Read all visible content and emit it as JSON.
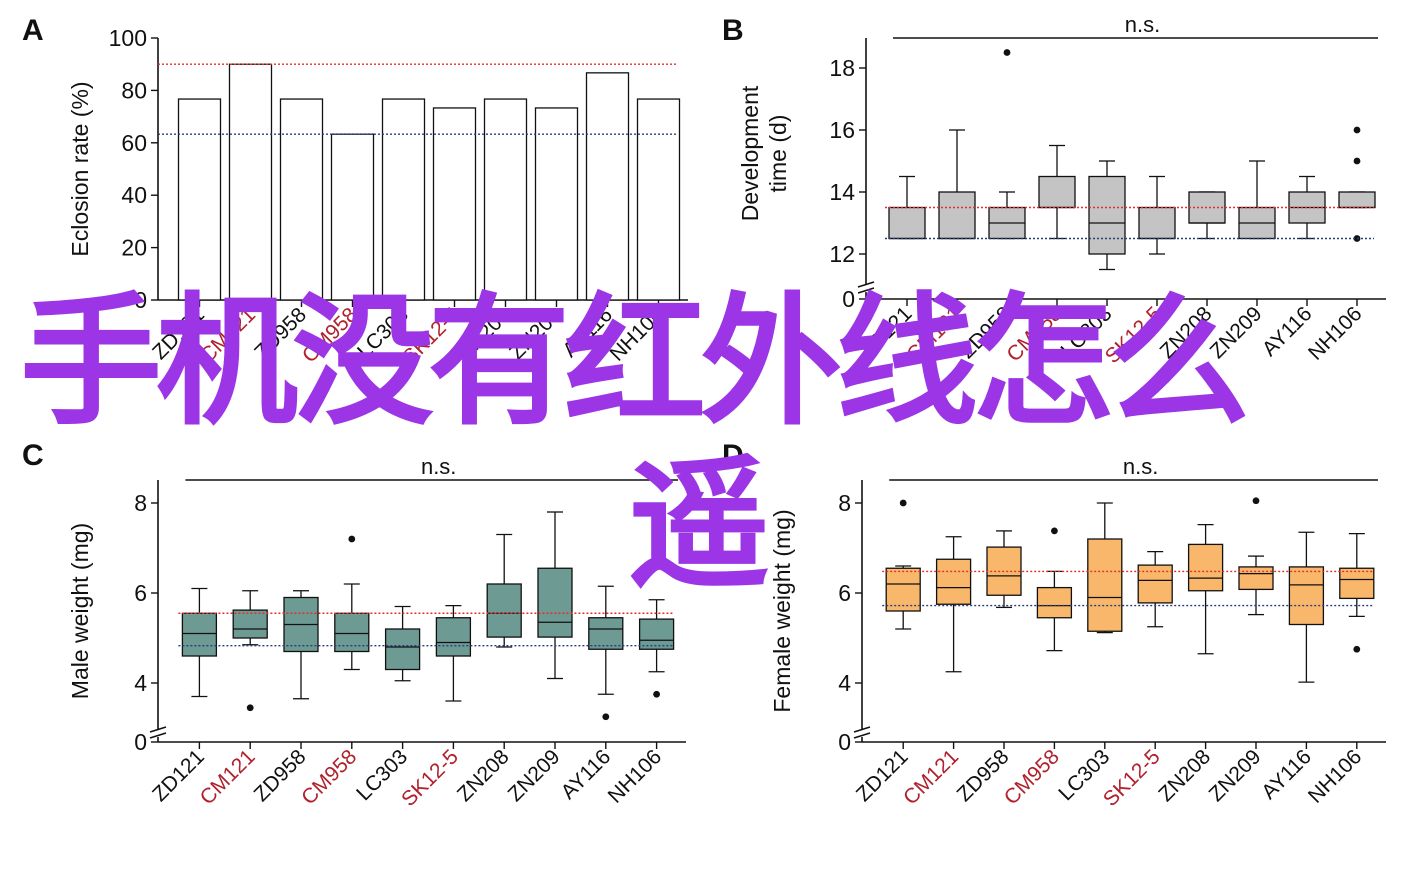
{
  "categories": [
    "ZD121",
    "CM121",
    "ZD958",
    "CM958",
    "LC303",
    "SK12-5",
    "ZN208",
    "ZN209",
    "AY116",
    "NH106"
  ],
  "category_colors": [
    "#111111",
    "#b0212c",
    "#111111",
    "#b0212c",
    "#111111",
    "#b0212c",
    "#111111",
    "#111111",
    "#111111",
    "#111111"
  ],
  "colors": {
    "ref_red": "#e0302c",
    "ref_blue": "#2a3f7a",
    "boxB": "#c4c4c4",
    "boxC": "#6e9a94",
    "boxD": "#f8b76b",
    "axis": "#111111"
  },
  "watermark": {
    "line1": "手机没有红外线怎么",
    "line2": "遥"
  },
  "chart_data": [
    {
      "panel": "A",
      "type": "bar",
      "ylabel": "Eclosion rate (%)",
      "ylim": [
        0,
        100
      ],
      "yticks": [
        0,
        20,
        40,
        60,
        80,
        100
      ],
      "values": [
        76.7,
        90,
        76.7,
        63.3,
        76.7,
        73.3,
        76.7,
        73.3,
        86.7,
        76.7
      ],
      "ref_lines": {
        "red": 90,
        "blue": 63.3
      },
      "bar_fill": "#ffffff"
    },
    {
      "panel": "B",
      "type": "box",
      "ylabel_line1": "Development",
      "ylabel_line2": "time (d)",
      "ylim": [
        11.5,
        19
      ],
      "yticks": [
        12,
        14,
        16,
        18
      ],
      "axis_break_zero": "0",
      "significance": "n.s.",
      "ref_lines": {
        "red": 13.5,
        "blue": 12.5
      },
      "boxes": [
        {
          "q1": 12.5,
          "med": 12.5,
          "q3": 13.5,
          "wlo": 12.5,
          "whi": 14.5,
          "outliers": []
        },
        {
          "q1": 12.5,
          "med": 12.5,
          "q3": 14.0,
          "wlo": 12.5,
          "whi": 16.0,
          "outliers": []
        },
        {
          "q1": 12.5,
          "med": 13.0,
          "q3": 13.5,
          "wlo": 12.5,
          "whi": 14.0,
          "outliers": [
            18.5
          ]
        },
        {
          "q1": 13.5,
          "med": 13.5,
          "q3": 14.5,
          "wlo": 12.5,
          "whi": 15.5,
          "outliers": []
        },
        {
          "q1": 12.0,
          "med": 13.0,
          "q3": 14.5,
          "wlo": 11.5,
          "whi": 15.0,
          "outliers": []
        },
        {
          "q1": 12.5,
          "med": 12.5,
          "q3": 13.5,
          "wlo": 12.0,
          "whi": 14.5,
          "outliers": []
        },
        {
          "q1": 13.0,
          "med": 13.0,
          "q3": 14.0,
          "wlo": 12.5,
          "whi": 14.0,
          "outliers": []
        },
        {
          "q1": 12.5,
          "med": 13.0,
          "q3": 13.5,
          "wlo": 12.5,
          "whi": 15.0,
          "outliers": []
        },
        {
          "q1": 13.0,
          "med": 13.5,
          "q3": 14.0,
          "wlo": 12.5,
          "whi": 14.5,
          "outliers": []
        },
        {
          "q1": 13.5,
          "med": 13.5,
          "q3": 14.0,
          "wlo": 13.5,
          "whi": 14.0,
          "outliers": [
            16.0,
            15.0,
            12.5
          ]
        }
      ]
    },
    {
      "panel": "C",
      "type": "box",
      "ylabel": "Male weight (mg)",
      "ylim": [
        3.5,
        8.5
      ],
      "yticks": [
        4,
        6,
        8
      ],
      "axis_break_zero": "0",
      "significance": "n.s.",
      "ref_lines": {
        "red": 5.55,
        "blue": 4.83
      },
      "boxes": [
        {
          "q1": 4.6,
          "med": 5.1,
          "q3": 5.55,
          "wlo": 3.7,
          "whi": 6.1,
          "outliers": []
        },
        {
          "q1": 5.0,
          "med": 5.2,
          "q3": 5.62,
          "wlo": 4.85,
          "whi": 6.05,
          "outliers": [
            3.45
          ]
        },
        {
          "q1": 4.7,
          "med": 5.3,
          "q3": 5.9,
          "wlo": 3.65,
          "whi": 6.05,
          "outliers": []
        },
        {
          "q1": 4.7,
          "med": 5.1,
          "q3": 5.55,
          "wlo": 4.3,
          "whi": 6.2,
          "outliers": [
            7.2
          ]
        },
        {
          "q1": 4.3,
          "med": 4.8,
          "q3": 5.2,
          "wlo": 4.05,
          "whi": 5.7,
          "outliers": []
        },
        {
          "q1": 4.6,
          "med": 4.9,
          "q3": 5.45,
          "wlo": 3.6,
          "whi": 5.72,
          "outliers": []
        },
        {
          "q1": 5.02,
          "med": 5.55,
          "q3": 6.2,
          "wlo": 4.8,
          "whi": 7.3,
          "outliers": []
        },
        {
          "q1": 5.02,
          "med": 5.35,
          "q3": 6.55,
          "wlo": 4.1,
          "whi": 7.8,
          "outliers": []
        },
        {
          "q1": 4.75,
          "med": 5.2,
          "q3": 5.45,
          "wlo": 3.75,
          "whi": 6.15,
          "outliers": [
            3.25
          ]
        },
        {
          "q1": 4.75,
          "med": 4.95,
          "q3": 5.42,
          "wlo": 4.25,
          "whi": 5.85,
          "outliers": [
            3.75
          ]
        }
      ]
    },
    {
      "panel": "D",
      "type": "box",
      "ylabel": "Female weight (mg)",
      "ylim": [
        3.5,
        8.5
      ],
      "yticks": [
        4,
        6,
        8
      ],
      "axis_break_zero": "0",
      "significance": "n.s.",
      "ref_lines": {
        "red": 6.48,
        "blue": 5.72
      },
      "boxes": [
        {
          "q1": 5.6,
          "med": 6.2,
          "q3": 6.55,
          "wlo": 5.2,
          "whi": 6.6,
          "outliers": [
            8.0
          ]
        },
        {
          "q1": 5.75,
          "med": 6.12,
          "q3": 6.75,
          "wlo": 4.25,
          "whi": 7.25,
          "outliers": []
        },
        {
          "q1": 5.95,
          "med": 6.38,
          "q3": 7.02,
          "wlo": 5.68,
          "whi": 7.38,
          "outliers": []
        },
        {
          "q1": 5.45,
          "med": 5.72,
          "q3": 6.12,
          "wlo": 4.72,
          "whi": 6.48,
          "outliers": [
            7.38
          ]
        },
        {
          "q1": 5.15,
          "med": 5.9,
          "q3": 7.2,
          "wlo": 5.12,
          "whi": 8.0,
          "outliers": []
        },
        {
          "q1": 5.78,
          "med": 6.28,
          "q3": 6.62,
          "wlo": 5.25,
          "whi": 6.92,
          "outliers": []
        },
        {
          "q1": 6.05,
          "med": 6.33,
          "q3": 7.08,
          "wlo": 4.65,
          "whi": 7.52,
          "outliers": []
        },
        {
          "q1": 6.08,
          "med": 6.43,
          "q3": 6.58,
          "wlo": 5.52,
          "whi": 6.82,
          "outliers": [
            8.05
          ]
        },
        {
          "q1": 5.3,
          "med": 6.18,
          "q3": 6.58,
          "wlo": 4.02,
          "whi": 7.35,
          "outliers": []
        },
        {
          "q1": 5.88,
          "med": 6.3,
          "q3": 6.55,
          "wlo": 5.48,
          "whi": 7.32,
          "outliers": [
            4.75
          ]
        }
      ]
    }
  ]
}
